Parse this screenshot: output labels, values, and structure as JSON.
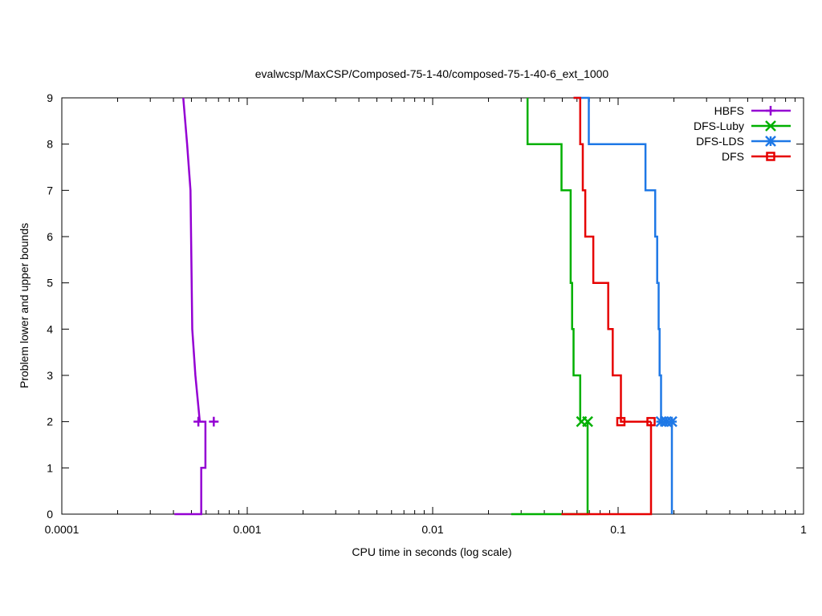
{
  "chart_data": {
    "type": "line",
    "title": "evalwcsp/MaxCSP/Composed-75-1-40/composed-75-1-40-6_ext_1000",
    "xlabel": "CPU time in seconds (log scale)",
    "ylabel": "Problem lower and upper bounds",
    "xscale": "log",
    "xlim": [
      0.0001,
      1
    ],
    "ylim": [
      0,
      9
    ],
    "xticks": [
      {
        "value": 0.0001,
        "label": "0.0001"
      },
      {
        "value": 0.001,
        "label": "0.001"
      },
      {
        "value": 0.01,
        "label": "0.01"
      },
      {
        "value": 0.1,
        "label": "0.1"
      },
      {
        "value": 1,
        "label": "1"
      }
    ],
    "yticks": [
      {
        "value": 0,
        "label": "0"
      },
      {
        "value": 1,
        "label": "1"
      },
      {
        "value": 2,
        "label": "2"
      },
      {
        "value": 3,
        "label": "3"
      },
      {
        "value": 4,
        "label": "4"
      },
      {
        "value": 5,
        "label": "5"
      },
      {
        "value": 6,
        "label": "6"
      },
      {
        "value": 7,
        "label": "7"
      },
      {
        "value": 8,
        "label": "8"
      },
      {
        "value": 9,
        "label": "9"
      }
    ],
    "legend_position": "top-right",
    "series": [
      {
        "name": "HBFS",
        "color": "#9400d3",
        "marker": "plus",
        "upper": [
          [
            0.000452,
            9
          ],
          [
            0.000474,
            8
          ],
          [
            0.000494,
            7
          ],
          [
            0.000505,
            4
          ],
          [
            0.000525,
            3
          ],
          [
            0.000555,
            2
          ]
        ],
        "lower": [
          [
            0.000405,
            0
          ],
          [
            0.000565,
            0
          ],
          [
            0.000565,
            1
          ],
          [
            0.000595,
            1
          ],
          [
            0.000595,
            2
          ],
          [
            0.000555,
            2
          ]
        ],
        "markers": [
          [
            0.000545,
            2
          ],
          [
            0.00066,
            2
          ]
        ]
      },
      {
        "name": "DFS-Luby",
        "color": "#00b000",
        "marker": "x",
        "upper": [
          [
            0.0325,
            9
          ],
          [
            0.0325,
            8
          ],
          [
            0.0495,
            8
          ],
          [
            0.0495,
            7
          ],
          [
            0.0555,
            7
          ],
          [
            0.0555,
            5
          ],
          [
            0.0565,
            5
          ],
          [
            0.0565,
            4
          ],
          [
            0.0575,
            4
          ],
          [
            0.0575,
            3
          ],
          [
            0.0625,
            3
          ],
          [
            0.0625,
            2
          ]
        ],
        "lower": [
          [
            0.0265,
            0
          ],
          [
            0.0685,
            0
          ],
          [
            0.0685,
            2
          ]
        ],
        "markers": [
          [
            0.0635,
            2
          ],
          [
            0.0685,
            2
          ]
        ]
      },
      {
        "name": "DFS-LDS",
        "color": "#1e78e6",
        "marker": "star",
        "upper": [
          [
            0.0575,
            9
          ],
          [
            0.0695,
            9
          ],
          [
            0.0695,
            8
          ],
          [
            0.1405,
            8
          ],
          [
            0.1405,
            7
          ],
          [
            0.1585,
            7
          ],
          [
            0.1585,
            6
          ],
          [
            0.1625,
            6
          ],
          [
            0.1625,
            5
          ],
          [
            0.1655,
            5
          ],
          [
            0.1655,
            4
          ],
          [
            0.1675,
            4
          ],
          [
            0.1675,
            3
          ],
          [
            0.1705,
            3
          ],
          [
            0.1705,
            2
          ]
        ],
        "lower": [
          [
            0.195,
            0
          ],
          [
            0.195,
            2
          ]
        ],
        "markers": [
          [
            0.1705,
            2
          ],
          [
            0.182,
            2
          ],
          [
            0.195,
            2
          ]
        ]
      },
      {
        "name": "DFS",
        "color": "#e60000",
        "marker": "square",
        "upper": [
          [
            0.0575,
            9
          ],
          [
            0.0625,
            9
          ],
          [
            0.0625,
            8
          ],
          [
            0.0645,
            8
          ],
          [
            0.0645,
            7
          ],
          [
            0.0665,
            7
          ],
          [
            0.0665,
            6
          ],
          [
            0.0735,
            6
          ],
          [
            0.0735,
            5
          ],
          [
            0.0885,
            5
          ],
          [
            0.0885,
            4
          ],
          [
            0.0935,
            4
          ],
          [
            0.0935,
            3
          ],
          [
            0.1035,
            3
          ],
          [
            0.1035,
            2
          ],
          [
            0.1505,
            2
          ]
        ],
        "lower": [
          [
            0.0495,
            0
          ],
          [
            0.1505,
            0
          ],
          [
            0.1505,
            2
          ]
        ],
        "markers": [
          [
            0.1035,
            2
          ],
          [
            0.1505,
            2
          ]
        ]
      }
    ]
  }
}
